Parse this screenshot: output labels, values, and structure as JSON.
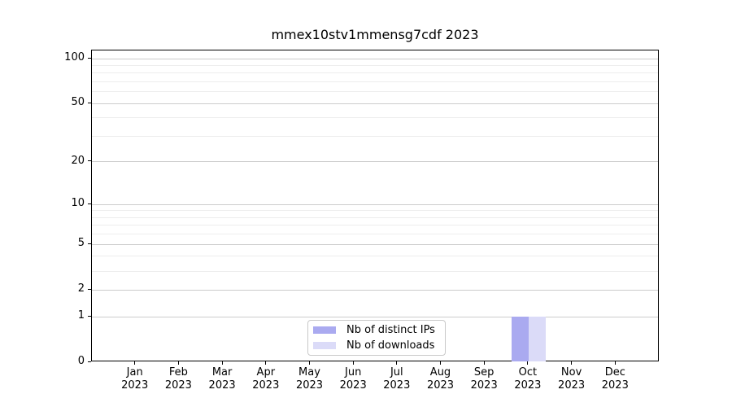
{
  "figure": {
    "background": "#ffffff"
  },
  "chart_data": {
    "type": "bar",
    "title": "mmex10stv1mmensg7cdf 2023",
    "categories": [
      "Jan 2023",
      "Feb 2023",
      "Mar 2023",
      "Apr 2023",
      "May 2023",
      "Jun 2023",
      "Jul 2023",
      "Aug 2023",
      "Sep 2023",
      "Oct 2023",
      "Nov 2023",
      "Dec 2023"
    ],
    "series": [
      {
        "name": "Nb of distinct IPs",
        "color": "#aaaaf0",
        "values": [
          0,
          0,
          0,
          0,
          0,
          0,
          0,
          0,
          0,
          1,
          0,
          0
        ]
      },
      {
        "name": "Nb of downloads",
        "color": "#dbdbf8",
        "values": [
          0,
          0,
          0,
          0,
          0,
          0,
          0,
          0,
          0,
          1,
          0,
          0
        ]
      }
    ],
    "y_axis": {
      "scale": "log1p",
      "ylim": [
        0,
        113
      ],
      "ticks": [
        0,
        1,
        2,
        5,
        10,
        20,
        50,
        100
      ],
      "tick_labels": [
        "0",
        "1",
        "2",
        "5",
        "10",
        "20",
        "50",
        "100"
      ],
      "minor_ticks": [
        3,
        4,
        6,
        7,
        8,
        9,
        30,
        40,
        60,
        70,
        80,
        90
      ]
    },
    "grid": {
      "visible": true,
      "major_color": "#cccccc",
      "minor_color": "#ededed"
    },
    "legend": {
      "position": "lower center"
    },
    "bar_colors": {
      "distinct_ips": "#aaaaf0",
      "downloads": "#dbdbf8"
    }
  }
}
